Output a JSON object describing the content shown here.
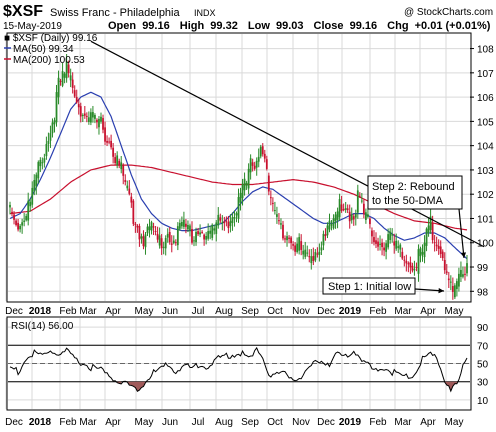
{
  "header": {
    "symbol": "$XSF",
    "name": "Swiss Franc - Philadelphia",
    "exchange": "INDX",
    "date": "15-May-2019",
    "open_label": "Open",
    "open": "99.16",
    "high_label": "High",
    "high": "99.32",
    "low_label": "Low",
    "low": "99.03",
    "close_label": "Close",
    "close": "99.16",
    "chg_label": "Chg",
    "chg": "+0.01 (+0.01%)",
    "credit": "@ StockCharts.com"
  },
  "colors": {
    "up": "#2a8a2a",
    "down": "#c8102e",
    "ma50": "#2a3fb0",
    "ma200": "#c8102e",
    "trendline": "#000000",
    "rsi_line": "#000000",
    "rsi_fill": "#a05a5a",
    "grid": "#d9d9d9"
  },
  "legend": {
    "series": "■ $XSF (Daily) 99.16",
    "ma50": "MA(50) 99.34",
    "ma200": "MA(200) 100.53"
  },
  "annotations": {
    "step1": "Step 1: Initial low",
    "step2_line1": "Step 2: Rebound",
    "step2_line2": "to the 50-DMA"
  },
  "chart_data": [
    {
      "type": "candlestick",
      "title": "$XSF Swiss Franc - Philadelphia INDX",
      "x_labels": [
        "Dec",
        "2018",
        "Feb",
        "Mar",
        "Apr",
        "May",
        "Jun",
        "Jul",
        "Aug",
        "Sep",
        "Oct",
        "Nov",
        "Dec",
        "2019",
        "Feb",
        "Mar",
        "Apr",
        "May"
      ],
      "y_ticks": [
        "108",
        "107",
        "106",
        "105",
        "104",
        "103",
        "102",
        "101",
        "100",
        "99",
        "98"
      ],
      "ylim": [
        97.6,
        108.6
      ],
      "grid": true,
      "series": [
        {
          "name": "$XSF (Daily)",
          "last": 99.16,
          "anchors": [
            [
              0,
              101.7
            ],
            [
              3,
              101.2
            ],
            [
              5,
              101.0
            ],
            [
              10,
              101.9
            ],
            [
              16,
              103.8
            ],
            [
              20,
              104.8
            ],
            [
              24,
              106.6
            ],
            [
              28,
              107.3
            ],
            [
              31,
              106.8
            ],
            [
              34,
              106.0
            ],
            [
              38,
              105.3
            ],
            [
              42,
              105.2
            ],
            [
              46,
              105.0
            ],
            [
              50,
              104.2
            ],
            [
              54,
              103.4
            ],
            [
              58,
              102.3
            ],
            [
              62,
              101.0
            ],
            [
              66,
              100.5
            ],
            [
              70,
              100.8
            ],
            [
              74,
              100.2
            ],
            [
              78,
              100.6
            ],
            [
              82,
              100.5
            ],
            [
              86,
              100.9
            ],
            [
              90,
              100.6
            ],
            [
              94,
              100.8
            ],
            [
              98,
              100.5
            ],
            [
              102,
              100.9
            ],
            [
              106,
              101.2
            ],
            [
              110,
              101.3
            ],
            [
              114,
              102.0
            ],
            [
              118,
              102.9
            ],
            [
              120,
              103.7
            ],
            [
              122,
              103.6
            ],
            [
              124,
              104.3
            ],
            [
              126,
              103.8
            ],
            [
              128,
              102.2
            ],
            [
              130,
              101.8
            ],
            [
              132,
              101.0
            ],
            [
              136,
              100.8
            ],
            [
              140,
              100.4
            ],
            [
              144,
              99.9
            ],
            [
              148,
              99.5
            ],
            [
              152,
              100.0
            ],
            [
              156,
              100.8
            ],
            [
              160,
              101.0
            ],
            [
              164,
              101.9
            ],
            [
              167,
              101.6
            ],
            [
              170,
              101.3
            ],
            [
              172,
              102.3
            ],
            [
              174,
              101.6
            ],
            [
              176,
              101.1
            ],
            [
              180,
              100.6
            ],
            [
              184,
              100.2
            ],
            [
              188,
              100.4
            ],
            [
              192,
              99.8
            ],
            [
              196,
              99.5
            ],
            [
              200,
              99.3
            ],
            [
              204,
              99.8
            ],
            [
              206,
              100.4
            ],
            [
              208,
              100.9
            ],
            [
              210,
              100.6
            ],
            [
              212,
              100.4
            ],
            [
              214,
              99.8
            ],
            [
              216,
              98.8
            ],
            [
              218,
              98.2
            ],
            [
              220,
              98.1
            ],
            [
              222,
              98.5
            ],
            [
              224,
              99.0
            ],
            [
              226,
              99.2
            ]
          ]
        },
        {
          "name": "MA(50)",
          "last": 99.34,
          "anchors": [
            [
              0,
              101.0
            ],
            [
              5,
              101.2
            ],
            [
              10,
              101.8
            ],
            [
              15,
              102.6
            ],
            [
              20,
              103.5
            ],
            [
              25,
              104.5
            ],
            [
              30,
              105.5
            ],
            [
              35,
              106.0
            ],
            [
              40,
              106.2
            ],
            [
              45,
              106.0
            ],
            [
              50,
              105.2
            ],
            [
              55,
              104.0
            ],
            [
              60,
              102.8
            ],
            [
              65,
              101.8
            ],
            [
              70,
              101.2
            ],
            [
              75,
              100.8
            ],
            [
              80,
              100.6
            ],
            [
              85,
              100.5
            ],
            [
              90,
              100.5
            ],
            [
              95,
              100.6
            ],
            [
              100,
              100.7
            ],
            [
              105,
              100.8
            ],
            [
              110,
              101.2
            ],
            [
              115,
              101.7
            ],
            [
              120,
              102.1
            ],
            [
              125,
              102.3
            ],
            [
              130,
              102.2
            ],
            [
              135,
              101.9
            ],
            [
              140,
              101.6
            ],
            [
              145,
              101.3
            ],
            [
              150,
              101.0
            ],
            [
              155,
              100.8
            ],
            [
              160,
              100.8
            ],
            [
              165,
              101.0
            ],
            [
              170,
              101.2
            ],
            [
              175,
              101.2
            ],
            [
              180,
              101.0
            ],
            [
              185,
              100.6
            ],
            [
              190,
              100.3
            ],
            [
              195,
              100.1
            ],
            [
              200,
              100.2
            ],
            [
              205,
              100.4
            ],
            [
              210,
              100.4
            ],
            [
              215,
              100.2
            ],
            [
              220,
              99.8
            ],
            [
              226,
              99.34
            ]
          ]
        },
        {
          "name": "MA(200)",
          "last": 100.53,
          "anchors": [
            [
              0,
              101.2
            ],
            [
              10,
              101.3
            ],
            [
              20,
              101.8
            ],
            [
              30,
              102.5
            ],
            [
              40,
              103.0
            ],
            [
              50,
              103.2
            ],
            [
              60,
              103.2
            ],
            [
              70,
              103.1
            ],
            [
              80,
              102.9
            ],
            [
              90,
              102.7
            ],
            [
              100,
              102.5
            ],
            [
              110,
              102.4
            ],
            [
              120,
              102.4
            ],
            [
              130,
              102.5
            ],
            [
              140,
              102.6
            ],
            [
              150,
              102.5
            ],
            [
              160,
              102.3
            ],
            [
              170,
              102.0
            ],
            [
              180,
              101.6
            ],
            [
              190,
              101.2
            ],
            [
              200,
              100.9
            ],
            [
              210,
              100.8
            ],
            [
              220,
              100.6
            ],
            [
              226,
              100.53
            ]
          ]
        }
      ],
      "trendline": {
        "from": [
          40,
          108.3
        ],
        "to": [
          226,
          100.0
        ]
      },
      "annotations": [
        "Step 1: Initial low",
        "Step 2: Rebound to the 50-DMA"
      ]
    },
    {
      "type": "line",
      "title": "RSI(14) 56.00",
      "x_labels": [
        "Dec",
        "2018",
        "Feb",
        "Mar",
        "Apr",
        "May",
        "Jun",
        "Jul",
        "Aug",
        "Sep",
        "Oct",
        "Nov",
        "Dec",
        "2019",
        "Feb",
        "Mar",
        "Apr",
        "May"
      ],
      "y_ticks": [
        "90",
        "70",
        "50",
        "30",
        "10"
      ],
      "ylim": [
        0,
        100
      ],
      "reference_lines": [
        70,
        30
      ],
      "series": [
        {
          "name": "RSI(14)",
          "last": 56.0,
          "anchors": [
            [
              0,
              48
            ],
            [
              4,
              43
            ],
            [
              8,
              57
            ],
            [
              12,
              63
            ],
            [
              16,
              60
            ],
            [
              20,
              66
            ],
            [
              24,
              62
            ],
            [
              28,
              65
            ],
            [
              32,
              56
            ],
            [
              36,
              52
            ],
            [
              40,
              48
            ],
            [
              44,
              46
            ],
            [
              48,
              40
            ],
            [
              52,
              34
            ],
            [
              56,
              31
            ],
            [
              60,
              27
            ],
            [
              64,
              24
            ],
            [
              66,
              28
            ],
            [
              70,
              40
            ],
            [
              74,
              46
            ],
            [
              78,
              50
            ],
            [
              82,
              44
            ],
            [
              86,
              50
            ],
            [
              90,
              46
            ],
            [
              94,
              52
            ],
            [
              98,
              48
            ],
            [
              102,
              56
            ],
            [
              106,
              60
            ],
            [
              110,
              62
            ],
            [
              114,
              64
            ],
            [
              118,
              58
            ],
            [
              120,
              60
            ],
            [
              122,
              68
            ],
            [
              124,
              64
            ],
            [
              126,
              52
            ],
            [
              128,
              42
            ],
            [
              130,
              38
            ],
            [
              134,
              42
            ],
            [
              138,
              38
            ],
            [
              142,
              36
            ],
            [
              146,
              40
            ],
            [
              150,
              50
            ],
            [
              154,
              56
            ],
            [
              158,
              52
            ],
            [
              162,
              62
            ],
            [
              166,
              60
            ],
            [
              170,
              66
            ],
            [
              172,
              62
            ],
            [
              176,
              52
            ],
            [
              180,
              44
            ],
            [
              184,
              48
            ],
            [
              188,
              44
            ],
            [
              192,
              40
            ],
            [
              196,
              38
            ],
            [
              200,
              40
            ],
            [
              204,
              56
            ],
            [
              206,
              60
            ],
            [
              208,
              62
            ],
            [
              210,
              58
            ],
            [
              212,
              52
            ],
            [
              214,
              40
            ],
            [
              216,
              30
            ],
            [
              218,
              25
            ],
            [
              220,
              26
            ],
            [
              222,
              32
            ],
            [
              224,
              48
            ],
            [
              226,
              56
            ]
          ]
        }
      ]
    }
  ]
}
